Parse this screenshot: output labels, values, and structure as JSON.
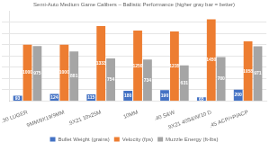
{
  "chart_data": {
    "type": "bar",
    "title": "Semi-Auto Medium Game Calibers – Ballistic Performance (higher gray bar = better)",
    "categories": [
      ".30 LUGER",
      "9MM/9X19/9MM",
      ".9X21 10x25M",
      "10MM",
      ".40 S&W",
      ".9X21 40S&W/10 D",
      ".45 ACP/+P/ACP"
    ],
    "series": [
      {
        "name": "Bullet Weight (grains)",
        "color": "#4472c4",
        "values": [
          93,
          124,
          115,
          180,
          190,
          65,
          200
        ]
      },
      {
        "name": "Velocity (fps)",
        "color": "#ed7d31",
        "values": [
          1000,
          1000,
          1333,
          1250,
          1235,
          1450,
          1058
        ]
      },
      {
        "name": "Muzzle Energy (ft-lbs)",
        "color": "#a5a5a5",
        "values": [
          975,
          881,
          754,
          734,
          631,
          780,
          971
        ]
      }
    ],
    "ylim": [
      0,
      1600
    ],
    "yticks": [
      200,
      400,
      600,
      800,
      1000,
      1200,
      1400
    ],
    "grid": true,
    "tick_labels": "x",
    "data_labels": true,
    "legend": "bottom"
  }
}
